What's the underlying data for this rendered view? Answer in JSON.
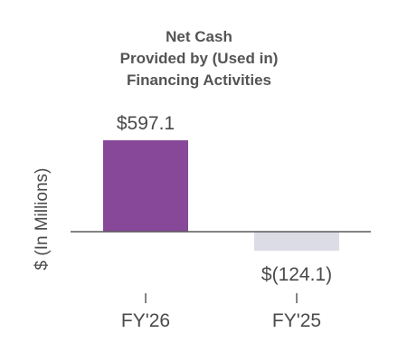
{
  "chart_data": {
    "type": "bar",
    "title_lines": [
      "Net Cash",
      "Provided by (Used in)",
      "Financing Activities"
    ],
    "ylabel": "$ (In Millions)",
    "xlabel": "",
    "categories": [
      "FY'26",
      "FY'25"
    ],
    "values": [
      597.1,
      -124.1
    ],
    "data_labels": [
      "$597.1",
      "$(124.1)"
    ],
    "colors": [
      "#87489a",
      "#dcdce6"
    ],
    "axis_color": "#5a5a5a",
    "grid": false,
    "legend": "none"
  }
}
